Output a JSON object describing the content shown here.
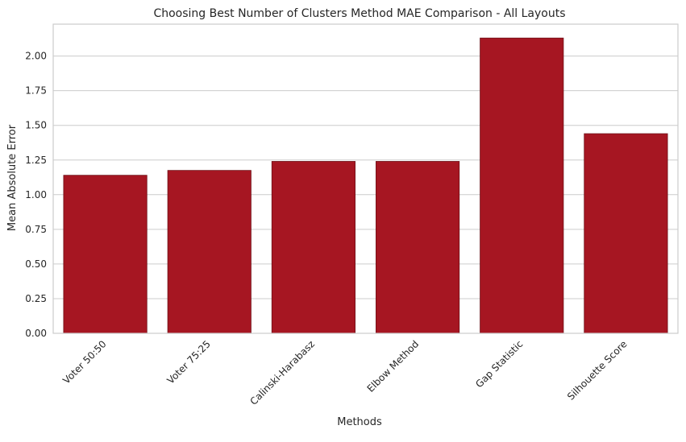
{
  "chart_data": {
    "type": "bar",
    "title": "Choosing Best Number of Clusters Method MAE Comparison - All Layouts",
    "xlabel": "Methods",
    "ylabel": "Mean Absolute Error",
    "categories": [
      "Voter 50:50",
      "Voter 75:25",
      "Calinski-Harabasz",
      "Elbow Method",
      "Gap Statistic",
      "Silhouette Score"
    ],
    "values": [
      1.14,
      1.175,
      1.24,
      1.24,
      2.13,
      1.44
    ],
    "ylim": [
      0,
      2.23
    ],
    "yticks": [
      0.0,
      0.25,
      0.5,
      0.75,
      1.0,
      1.25,
      1.5,
      1.75,
      2.0
    ],
    "ytick_labels": [
      "0.00",
      "0.25",
      "0.50",
      "0.75",
      "1.00",
      "1.25",
      "1.50",
      "1.75",
      "2.00"
    ],
    "grid": "horizontal",
    "bar_color": "#a61622",
    "bar_edge_color": "#6e0f16",
    "grid_color": "#cccccc",
    "spine_color": "#cccccc"
  }
}
